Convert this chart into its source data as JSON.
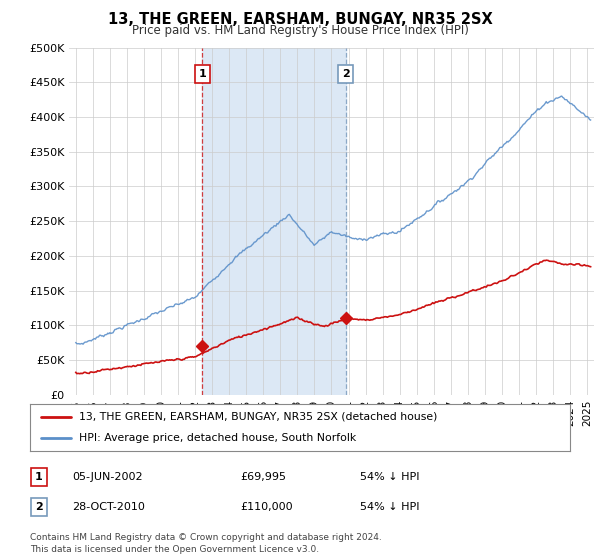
{
  "title": "13, THE GREEN, EARSHAM, BUNGAY, NR35 2SX",
  "subtitle": "Price paid vs. HM Land Registry's House Price Index (HPI)",
  "legend_line1": "13, THE GREEN, EARSHAM, BUNGAY, NR35 2SX (detached house)",
  "legend_line2": "HPI: Average price, detached house, South Norfolk",
  "annotation1_label": "1",
  "annotation1_date": "05-JUN-2002",
  "annotation1_price": "£69,995",
  "annotation1_hpi": "54% ↓ HPI",
  "annotation2_label": "2",
  "annotation2_date": "28-OCT-2010",
  "annotation2_price": "£110,000",
  "annotation2_hpi": "54% ↓ HPI",
  "footer": "Contains HM Land Registry data © Crown copyright and database right 2024.\nThis data is licensed under the Open Government Licence v3.0.",
  "hpi_color": "#5b8fc9",
  "price_color": "#cc1111",
  "vline1_color": "#cc1111",
  "vline2_color": "#7799bb",
  "shade_color": "#dce8f5",
  "grid_color": "#cccccc",
  "background_color": "#ffffff",
  "ylim": [
    0,
    500000
  ],
  "yticks": [
    0,
    50000,
    100000,
    150000,
    200000,
    250000,
    300000,
    350000,
    400000,
    450000,
    500000
  ],
  "sale1_x": 2002.43,
  "sale1_y": 69995,
  "sale2_x": 2010.83,
  "sale2_y": 110000,
  "xmin": 1995,
  "xmax": 2025
}
